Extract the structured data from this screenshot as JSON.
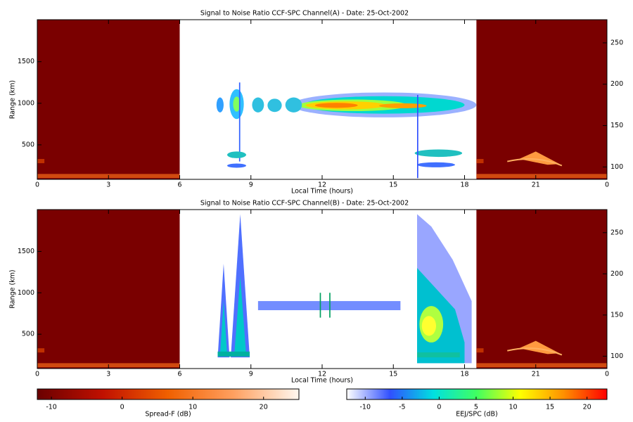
{
  "chart_data": [
    {
      "type": "heatmap",
      "title": "Signal to Noise Ratio CCF-SPC Channel(A) - Date: 25-Oct-2002",
      "xlabel": "Local Time (hours)",
      "ylabel": "Range (km)",
      "xlim": [
        0,
        24
      ],
      "xticks": [
        0,
        3,
        6,
        9,
        12,
        15,
        18,
        21,
        {
          "value": 24,
          "label": "0"
        }
      ],
      "ylim": [
        85,
        2005
      ],
      "yticks": [
        500,
        1000,
        1500
      ],
      "y2lim": [
        85,
        278
      ],
      "y2ticks": [
        100,
        150,
        200,
        250
      ]
    },
    {
      "type": "heatmap",
      "title": "Signal to Noise Ratio CCF-SPC Channel(B) - Date: 25-Oct-2002",
      "xlabel": "Local Time (hours)",
      "ylabel": "Range (km)",
      "xlim": [
        0,
        24
      ],
      "xticks": [
        0,
        3,
        6,
        9,
        12,
        15,
        18,
        21,
        {
          "value": 24,
          "label": "0"
        }
      ],
      "ylim": [
        85,
        2005
      ],
      "yticks": [
        500,
        1000,
        1500
      ],
      "y2lim": [
        85,
        278
      ],
      "y2ticks": [
        100,
        150,
        200,
        250
      ]
    }
  ],
  "colorbars": [
    {
      "label": "Spread-F (dB)",
      "clim": [
        -12,
        25
      ],
      "ticks": [
        -10,
        0,
        10,
        20
      ],
      "colors": [
        "#6a0000",
        "#c01000",
        "#f06000",
        "#ffa060",
        "#fff8f0"
      ]
    },
    {
      "label": "EEJ/SPC (dB)",
      "clim": [
        -12.5,
        22.7
      ],
      "ticks": [
        -10,
        -5,
        0,
        5,
        10,
        15,
        20
      ],
      "colors": [
        "#ffffff",
        "#3050ff",
        "#00e0e0",
        "#40ff60",
        "#ffff00",
        "#ff9000",
        "#ff0000"
      ]
    }
  ]
}
